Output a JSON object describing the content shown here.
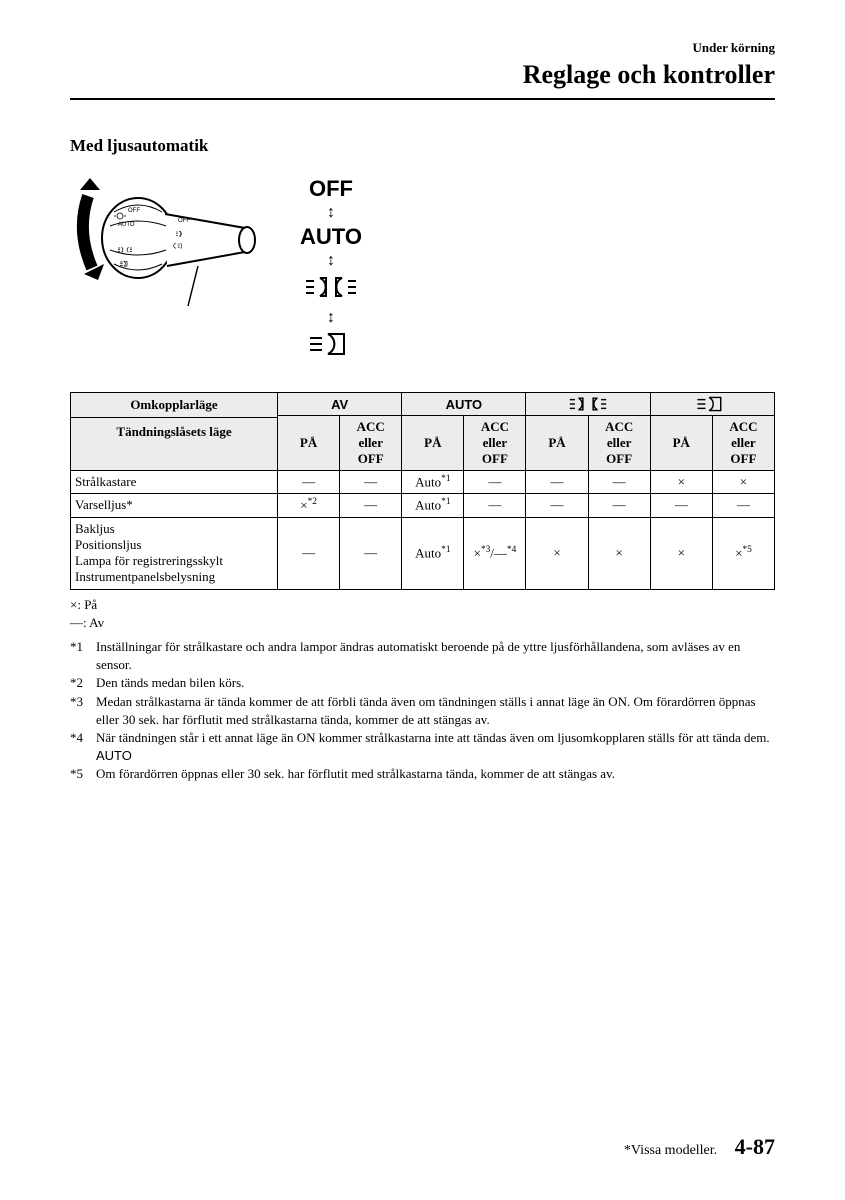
{
  "header": {
    "small": "Under körning",
    "title": "Reglage och kontroller"
  },
  "subtitle": "Med ljusautomatik",
  "positions": {
    "off": "OFF",
    "auto": "AUTO"
  },
  "table": {
    "headers": {
      "switch_position": "Omkopplarläge",
      "ignition_position": "Tändningslåsets läge",
      "av": "AV",
      "auto": "AUTO",
      "on": "PÅ",
      "acc_off": "ACC eller OFF"
    },
    "rows": [
      {
        "label": "Strålkastare",
        "cells": [
          "—",
          "—",
          "Auto*1",
          "—",
          "—",
          "—",
          "×",
          "×"
        ]
      },
      {
        "label": "Varselljus*",
        "cells": [
          "×*2",
          "—",
          "Auto*1",
          "—",
          "—",
          "—",
          "—",
          "—"
        ]
      },
      {
        "label": "Bakljus\nPositionsljus\nLampa för registreringsskylt\nInstrumentpanelsbelysning",
        "cells": [
          "—",
          "—",
          "Auto*1",
          "×*3/—*4",
          "×",
          "×",
          "×",
          "×*5"
        ]
      }
    ]
  },
  "legend": {
    "on": "×: På",
    "off": "—: Av"
  },
  "footnotes": [
    {
      "tag": "*1",
      "text": "Inställningar för strålkastare och andra lampor ändras automatiskt beroende på de yttre ljusförhållandena, som avläses av en sensor."
    },
    {
      "tag": "*2",
      "text": "Den tänds medan bilen körs."
    },
    {
      "tag": "*3",
      "text": "Medan strålkastarna är tända kommer de att förbli tända även om tändningen ställs i annat läge än ON. Om förardörren öppnas eller 30 sek. har förflutit med strålkastarna tända, kommer de att stängas av."
    },
    {
      "tag": "*4",
      "text": "När tändningen står i ett annat läge än ON kommer strålkastarna inte att tändas även om ljusomkopplaren ställs för att tända dem. AUTO"
    },
    {
      "tag": "*5",
      "text": "Om förardörren öppnas eller 30 sek. har förflutit med strålkastarna tända, kommer de att stängas av."
    }
  ],
  "footer": {
    "note": "*Vissa modeller.",
    "page": "4-87"
  }
}
